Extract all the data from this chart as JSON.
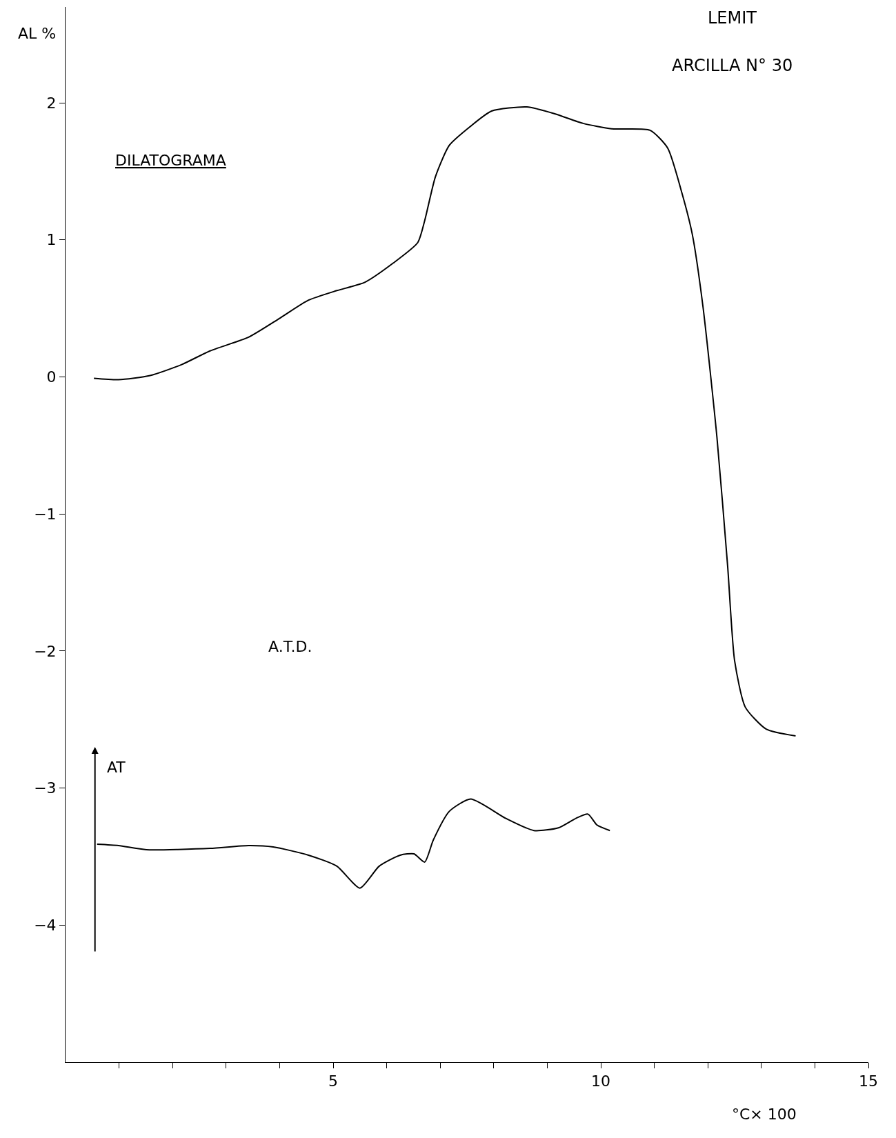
{
  "chart_data": {
    "type": "line",
    "title": "LEMIT",
    "subtitle": "ARCILLA N° 30",
    "xlabel": "°C× 100",
    "ylabel": "AL %",
    "annotations": [
      "DILATOGRAMA",
      "A.T.D.",
      "AT"
    ],
    "series": [
      {
        "color": "#000000",
        "x": [
          0.53,
          0.99,
          1.58,
          2.17,
          2.7,
          3.42,
          4.01,
          4.54,
          5.07,
          5.59,
          6.12,
          6.58,
          6.71,
          6.91,
          7.17,
          7.57,
          7.96,
          8.62,
          9.14,
          9.67,
          10.2,
          10.92,
          11.25,
          11.51,
          11.71,
          11.91,
          12.17,
          12.37,
          12.5,
          12.7,
          13.09,
          13.64
        ],
        "values": [
          -0.01,
          -0.02,
          0.01,
          0.09,
          0.19,
          0.29,
          0.43,
          0.56,
          0.63,
          0.69,
          0.83,
          0.98,
          1.14,
          1.46,
          1.69,
          1.83,
          1.94,
          1.97,
          1.92,
          1.85,
          1.81,
          1.8,
          1.67,
          1.35,
          1.04,
          0.51,
          -0.44,
          -1.38,
          -2.07,
          -2.41,
          -2.57,
          -2.62
        ]
      },
      {
        "color": "#000000",
        "x": [
          0.59,
          0.99,
          1.51,
          2.7,
          3.42,
          3.88,
          4.54,
          5.07,
          5.5,
          5.86,
          6.25,
          6.51,
          6.71,
          6.87,
          7.17,
          7.57,
          8.22,
          8.75,
          9.21,
          9.54,
          9.76,
          9.93,
          10.17
        ],
        "values": [
          -3.41,
          -3.42,
          -3.45,
          -3.44,
          -3.42,
          -3.43,
          -3.49,
          -3.57,
          -3.73,
          -3.57,
          -3.49,
          -3.48,
          -3.54,
          -3.38,
          -3.17,
          -3.08,
          -3.22,
          -3.31,
          -3.29,
          -3.22,
          -3.19,
          -3.27,
          -3.31
        ]
      }
    ],
    "xlim": [
      0,
      15
    ],
    "ylim": [
      -5,
      2.7
    ],
    "xticks": [
      {
        "value": 1,
        "label": null
      },
      {
        "value": 2,
        "label": null
      },
      {
        "value": 3,
        "label": null
      },
      {
        "value": 4,
        "label": null
      },
      5,
      {
        "value": 6,
        "label": null
      },
      {
        "value": 7,
        "label": null
      },
      {
        "value": 8,
        "label": null
      },
      {
        "value": 9,
        "label": null
      },
      10,
      {
        "value": 11,
        "label": null
      },
      {
        "value": 12,
        "label": null
      },
      {
        "value": 13,
        "label": null
      },
      {
        "value": 14,
        "label": null
      },
      15
    ],
    "yticks": [
      -4,
      -3,
      -2,
      -1,
      0,
      1,
      2
    ],
    "marker": "none",
    "line_style": "solid"
  }
}
